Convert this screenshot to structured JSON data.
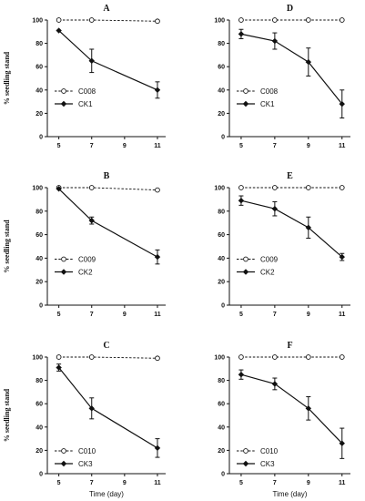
{
  "chart_data": [
    {
      "type": "line",
      "title": "A",
      "ylabel": "% seedling stand",
      "xlabel": "",
      "x_ticks": [
        5,
        7,
        9,
        11
      ],
      "y_ticks": [
        0,
        20,
        40,
        60,
        80,
        100
      ],
      "xlim": [
        4.3,
        11.5
      ],
      "ylim": [
        0,
        100
      ],
      "grid": false,
      "legend_position": "middle-left",
      "series": [
        {
          "name": "C008",
          "style": "dashed-open-circle",
          "x": [
            5,
            7,
            11
          ],
          "y": [
            100,
            100,
            99
          ],
          "err": [
            0,
            0,
            0
          ]
        },
        {
          "name": "CK1",
          "style": "solid-filled-diamond",
          "x": [
            5,
            7,
            11
          ],
          "y": [
            91,
            65,
            40
          ],
          "err": [
            0,
            10,
            7
          ]
        }
      ]
    },
    {
      "type": "line",
      "title": "D",
      "ylabel": "",
      "xlabel": "",
      "x_ticks": [
        5,
        7,
        9,
        11
      ],
      "y_ticks": [
        0,
        20,
        40,
        60,
        80,
        100
      ],
      "xlim": [
        4.3,
        11.5
      ],
      "ylim": [
        0,
        100
      ],
      "grid": false,
      "legend_position": "middle-left",
      "series": [
        {
          "name": "C008",
          "style": "dashed-open-circle",
          "x": [
            5,
            7,
            9,
            11
          ],
          "y": [
            100,
            100,
            100,
            100
          ],
          "err": [
            0,
            0,
            0,
            0
          ]
        },
        {
          "name": "CK1",
          "style": "solid-filled-diamond",
          "x": [
            5,
            7,
            9,
            11
          ],
          "y": [
            88,
            82,
            64,
            28
          ],
          "err": [
            4,
            7,
            12,
            12
          ]
        }
      ]
    },
    {
      "type": "line",
      "title": "B",
      "ylabel": "% seedling stand",
      "xlabel": "",
      "x_ticks": [
        5,
        7,
        9,
        11
      ],
      "y_ticks": [
        0,
        20,
        40,
        60,
        80,
        100
      ],
      "xlim": [
        4.3,
        11.5
      ],
      "ylim": [
        0,
        100
      ],
      "grid": false,
      "legend_position": "middle-left",
      "series": [
        {
          "name": "C009",
          "style": "dashed-open-circle",
          "x": [
            5,
            7,
            11
          ],
          "y": [
            100,
            100,
            98
          ],
          "err": [
            0,
            0,
            0
          ]
        },
        {
          "name": "CK2",
          "style": "solid-filled-diamond",
          "x": [
            5,
            7,
            11
          ],
          "y": [
            99,
            72,
            41
          ],
          "err": [
            0,
            3,
            6
          ]
        }
      ]
    },
    {
      "type": "line",
      "title": "E",
      "ylabel": "",
      "xlabel": "",
      "x_ticks": [
        5,
        7,
        9,
        11
      ],
      "y_ticks": [
        0,
        20,
        40,
        60,
        80,
        100
      ],
      "xlim": [
        4.3,
        11.5
      ],
      "ylim": [
        0,
        100
      ],
      "grid": false,
      "legend_position": "middle-left",
      "series": [
        {
          "name": "C009",
          "style": "dashed-open-circle",
          "x": [
            5,
            7,
            9,
            11
          ],
          "y": [
            100,
            100,
            100,
            100
          ],
          "err": [
            0,
            0,
            0,
            0
          ]
        },
        {
          "name": "CK2",
          "style": "solid-filled-diamond",
          "x": [
            5,
            7,
            9,
            11
          ],
          "y": [
            89,
            82,
            66,
            41
          ],
          "err": [
            4,
            6,
            9,
            3
          ]
        }
      ]
    },
    {
      "type": "line",
      "title": "C",
      "ylabel": "% seedling stand",
      "xlabel": "Time (day)",
      "x_ticks": [
        5,
        7,
        9,
        11
      ],
      "y_ticks": [
        0,
        20,
        40,
        60,
        80,
        100
      ],
      "xlim": [
        4.3,
        11.5
      ],
      "ylim": [
        0,
        100
      ],
      "grid": false,
      "legend_position": "bottom-left",
      "series": [
        {
          "name": "C010",
          "style": "dashed-open-circle",
          "x": [
            5,
            7,
            11
          ],
          "y": [
            100,
            100,
            99
          ],
          "err": [
            0,
            0,
            0
          ]
        },
        {
          "name": "CK3",
          "style": "solid-filled-diamond",
          "x": [
            5,
            7,
            11
          ],
          "y": [
            91,
            56,
            22
          ],
          "err": [
            3,
            9,
            8
          ]
        }
      ]
    },
    {
      "type": "line",
      "title": "F",
      "ylabel": "",
      "xlabel": "Time (day)",
      "x_ticks": [
        5,
        7,
        9,
        11
      ],
      "y_ticks": [
        0,
        20,
        40,
        60,
        80,
        100
      ],
      "xlim": [
        4.3,
        11.5
      ],
      "ylim": [
        0,
        100
      ],
      "grid": false,
      "legend_position": "bottom-left",
      "series": [
        {
          "name": "C010",
          "style": "dashed-open-circle",
          "x": [
            5,
            7,
            9,
            11
          ],
          "y": [
            100,
            100,
            100,
            100
          ],
          "err": [
            0,
            0,
            0,
            0
          ]
        },
        {
          "name": "CK3",
          "style": "solid-filled-diamond",
          "x": [
            5,
            7,
            9,
            11
          ],
          "y": [
            85,
            77,
            56,
            26
          ],
          "err": [
            4,
            5,
            10,
            13
          ]
        }
      ]
    }
  ]
}
